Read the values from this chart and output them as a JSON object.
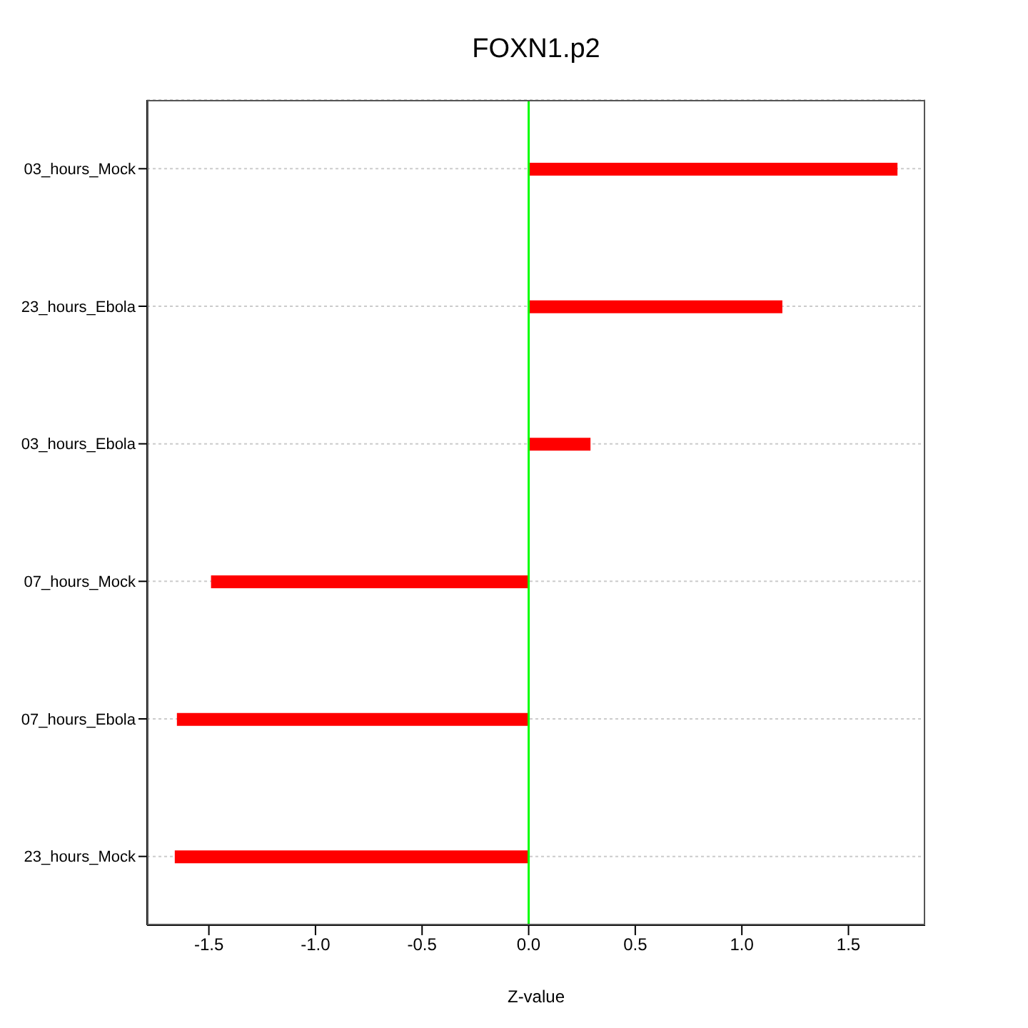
{
  "chart_data": {
    "type": "bar",
    "orientation": "horizontal",
    "title": "FOXN1.p2",
    "xlabel": "Z-value",
    "categories": [
      "03_hours_Mock",
      "23_hours_Ebola",
      "03_hours_Ebola",
      "07_hours_Mock",
      "07_hours_Ebola",
      "23_hours_Mock"
    ],
    "values": [
      1.73,
      1.19,
      0.29,
      -1.49,
      -1.65,
      -1.66
    ],
    "color": "#ff0000",
    "xlim": [
      -1.79,
      1.86
    ],
    "xticks": [
      -1.5,
      {
        "value": -1,
        "label": "-1.0"
      },
      -0.5,
      {
        "value": 0,
        "label": "0.0"
      },
      0.5,
      {
        "value": 1,
        "label": "1.0"
      },
      1.5
    ],
    "ref_lines": [
      {
        "axis": "x",
        "value": 0,
        "color": "#00ff00"
      }
    ],
    "grid": "y"
  }
}
